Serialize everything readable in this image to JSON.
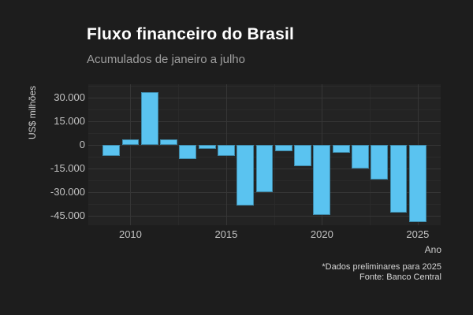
{
  "chart_data": {
    "type": "bar",
    "title": "Fluxo financeiro do Brasil",
    "subtitle": "Acumulados de janeiro a julho",
    "xlabel": "Ano",
    "ylabel": "US$ milhões",
    "caption_line1": "*Dados preliminares para 2025",
    "caption_line2": "Fonte: Banco Central",
    "categories": [
      2009,
      2010,
      2011,
      2012,
      2013,
      2014,
      2015,
      2016,
      2017,
      2018,
      2019,
      2020,
      2021,
      2022,
      2023,
      2024,
      2025
    ],
    "values": [
      -6800,
      3600,
      33600,
      3400,
      -8900,
      -2700,
      -7200,
      -38600,
      -30200,
      -4100,
      -13700,
      -44700,
      -5000,
      -15000,
      -22200,
      -43000,
      -48900
    ],
    "y_major_ticks": [
      {
        "value": 30000,
        "label": "30.000"
      },
      {
        "value": 15000,
        "label": "15.000"
      },
      {
        "value": 0,
        "label": "0"
      },
      {
        "value": -15000,
        "label": "-15.000"
      },
      {
        "value": -30000,
        "label": "-30.000"
      },
      {
        "value": -45000,
        "label": "-45.000"
      }
    ],
    "y_minor_ticks": [
      37500,
      22500,
      7500,
      -7500,
      -22500,
      -37500
    ],
    "x_major_ticks": [
      2010,
      2015,
      2020,
      2025
    ],
    "x_minor_ticks": [
      2012.5,
      2017.5,
      2022.5
    ],
    "xlim": [
      2007.8,
      2026.2
    ],
    "ylim": [
      -51000,
      38500
    ],
    "grid": true,
    "legend": "none",
    "bar_width_years": 0.9,
    "colors": {
      "bar": "#5ac3f0",
      "background": "#1d1d1d",
      "panel": "#232323",
      "grid_major": "#363636",
      "grid_minor": "#2a2a2a",
      "title": "#ffffff",
      "subtitle": "#9e9e9e",
      "tick_label": "#c2c2c2",
      "axis_title": "#cdcdcd",
      "caption": "#d6d6d6"
    }
  }
}
